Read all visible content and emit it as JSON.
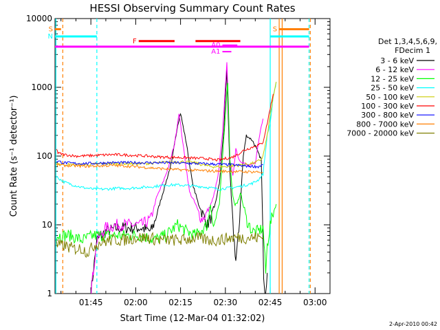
{
  "chart_data": {
    "type": "line",
    "title": "HESSI Observing Summary Count Rates",
    "xlabel": "Start Time (12-Mar-04 01:32:02)",
    "ylabel": "Count Rate (s⁻¹ detector⁻¹)",
    "yscale": "log",
    "ylim": [
      1,
      10000
    ],
    "xlim_minutes": [
      93,
      185
    ],
    "x_ticks": [
      "01:45",
      "02:00",
      "02:15",
      "02:30",
      "02:45",
      "03:00"
    ],
    "y_ticks": [
      "1",
      "10",
      "100",
      "1000",
      "10000"
    ],
    "legend": {
      "header": [
        "Det 1,3,4,5,6,9,",
        "FDecim 1"
      ],
      "placement": "right"
    },
    "series": [
      {
        "name": "3 - 6 keV",
        "color": "#000000",
        "points": [
          [
            105,
            1
          ],
          [
            107,
            6
          ],
          [
            110,
            8
          ],
          [
            114,
            9
          ],
          [
            118,
            9
          ],
          [
            122,
            9
          ],
          [
            125,
            8
          ],
          [
            126,
            10
          ],
          [
            128,
            20
          ],
          [
            130,
            40
          ],
          [
            132,
            80
          ],
          [
            134,
            280
          ],
          [
            135,
            420
          ],
          [
            137,
            150
          ],
          [
            139,
            40
          ],
          [
            141,
            20
          ],
          [
            144,
            10
          ],
          [
            146,
            15
          ],
          [
            148,
            40
          ],
          [
            149.5,
            250
          ],
          [
            150.5,
            1800
          ],
          [
            151.5,
            60
          ],
          [
            152.5,
            10
          ],
          [
            153.5,
            3
          ],
          [
            154.5,
            8
          ],
          [
            155,
            20
          ],
          [
            156,
            100
          ],
          [
            157,
            200
          ],
          [
            159,
            170
          ],
          [
            160,
            140
          ],
          [
            161,
            110
          ],
          [
            162,
            90
          ],
          [
            162.8,
            2
          ],
          [
            163.3,
            1
          ],
          [
            164,
            2
          ]
        ]
      },
      {
        "name": "6 - 12 keV",
        "color": "#ff00ff",
        "points": [
          [
            105,
            1
          ],
          [
            107,
            6
          ],
          [
            110,
            9
          ],
          [
            114,
            10
          ],
          [
            118,
            10
          ],
          [
            122,
            10
          ],
          [
            125,
            12
          ],
          [
            127,
            25
          ],
          [
            129,
            40
          ],
          [
            131,
            70
          ],
          [
            133,
            150
          ],
          [
            134.5,
            430
          ],
          [
            136,
            130
          ],
          [
            138,
            30
          ],
          [
            140,
            20
          ],
          [
            142,
            12
          ],
          [
            144,
            15
          ],
          [
            146,
            25
          ],
          [
            147.5,
            50
          ],
          [
            149,
            200
          ],
          [
            150.5,
            2400
          ],
          [
            151.5,
            90
          ],
          [
            152.5,
            50
          ],
          [
            153.5,
            130
          ],
          [
            154.5,
            90
          ],
          [
            156,
            80
          ],
          [
            158,
            70
          ],
          [
            160,
            80
          ],
          [
            161,
            150
          ],
          [
            162,
            280
          ],
          [
            162.6,
            350
          ]
        ]
      },
      {
        "name": "12 - 25 keV",
        "color": "#00ff00",
        "points": [
          [
            93.5,
            7
          ],
          [
            98,
            7
          ],
          [
            102,
            6
          ],
          [
            106,
            7
          ],
          [
            110,
            7
          ],
          [
            114,
            7
          ],
          [
            118,
            7
          ],
          [
            122,
            7
          ],
          [
            126,
            6
          ],
          [
            130,
            7
          ],
          [
            134,
            10
          ],
          [
            137,
            8
          ],
          [
            140,
            7
          ],
          [
            144,
            10
          ],
          [
            145,
            20
          ],
          [
            146,
            9
          ],
          [
            148,
            20
          ],
          [
            150,
            400
          ],
          [
            150.8,
            1200
          ],
          [
            151.5,
            100
          ],
          [
            152.3,
            30
          ],
          [
            153,
            20
          ],
          [
            154,
            20
          ],
          [
            155,
            30
          ],
          [
            157,
            12
          ],
          [
            159,
            8
          ],
          [
            161,
            8
          ],
          [
            162.6,
            9
          ],
          [
            163,
            5
          ],
          [
            163.5,
            2
          ],
          [
            164,
            5
          ],
          [
            165,
            10
          ],
          [
            166,
            15
          ],
          [
            167,
            20
          ]
        ]
      },
      {
        "name": "25 - 50 keV",
        "color": "#00ffff",
        "points": [
          [
            93.5,
            50
          ],
          [
            96,
            42
          ],
          [
            99,
            38
          ],
          [
            102,
            35
          ],
          [
            106,
            33
          ],
          [
            110,
            33
          ],
          [
            114,
            34
          ],
          [
            118,
            34
          ],
          [
            122,
            35
          ],
          [
            126,
            36
          ],
          [
            130,
            38
          ],
          [
            134,
            38
          ],
          [
            138,
            37
          ],
          [
            142,
            36
          ],
          [
            144,
            35
          ],
          [
            146,
            34
          ],
          [
            148,
            33
          ],
          [
            150,
            34
          ],
          [
            153,
            35
          ],
          [
            156,
            37
          ],
          [
            159,
            40
          ],
          [
            161,
            45
          ],
          [
            162.6,
            55
          ],
          [
            164,
            200
          ],
          [
            165,
            300
          ],
          [
            166,
            700
          ],
          [
            167,
            1200
          ]
        ]
      },
      {
        "name": "50 - 100 keV",
        "color": "#cccc00",
        "points": [
          [
            93.5,
            78
          ],
          [
            96,
            75
          ],
          [
            100,
            75
          ],
          [
            104,
            75
          ],
          [
            108,
            77
          ],
          [
            112,
            78
          ],
          [
            116,
            78
          ],
          [
            120,
            77
          ],
          [
            124,
            78
          ],
          [
            128,
            80
          ],
          [
            132,
            82
          ],
          [
            136,
            83
          ],
          [
            140,
            80
          ],
          [
            142,
            75
          ],
          [
            144,
            72
          ],
          [
            146,
            70
          ],
          [
            148,
            70
          ],
          [
            150,
            70
          ],
          [
            152,
            72
          ],
          [
            154,
            73
          ],
          [
            156,
            75
          ],
          [
            158,
            77
          ],
          [
            160,
            80
          ],
          [
            162,
            90
          ],
          [
            162.6,
            100
          ],
          [
            164,
            200
          ],
          [
            165,
            400
          ],
          [
            166,
            700
          ],
          [
            167,
            1200
          ]
        ]
      },
      {
        "name": "100 - 300 keV",
        "color": "#ff0000",
        "points": [
          [
            93.5,
            130
          ],
          [
            94,
            110
          ],
          [
            96,
            105
          ],
          [
            100,
            100
          ],
          [
            104,
            101
          ],
          [
            108,
            103
          ],
          [
            112,
            105
          ],
          [
            116,
            104
          ],
          [
            120,
            102
          ],
          [
            124,
            100
          ],
          [
            128,
            97
          ],
          [
            132,
            96
          ],
          [
            136,
            95
          ],
          [
            140,
            93
          ],
          [
            144,
            92
          ],
          [
            146,
            88
          ],
          [
            148,
            88
          ],
          [
            150,
            92
          ],
          [
            152,
            95
          ],
          [
            154,
            105
          ],
          [
            156,
            120
          ],
          [
            158,
            130
          ],
          [
            160,
            140
          ],
          [
            162,
            150
          ],
          [
            162.6,
            160
          ],
          [
            164,
            300
          ],
          [
            165,
            500
          ],
          [
            166,
            800
          ]
        ]
      },
      {
        "name": "300 - 800 keV",
        "color": "#0000ff",
        "points": [
          [
            93.5,
            85
          ],
          [
            96,
            80
          ],
          [
            100,
            78
          ],
          [
            104,
            78
          ],
          [
            108,
            79
          ],
          [
            112,
            80
          ],
          [
            116,
            80
          ],
          [
            120,
            80
          ],
          [
            124,
            80
          ],
          [
            128,
            80
          ],
          [
            132,
            80
          ],
          [
            136,
            79
          ],
          [
            140,
            78
          ],
          [
            144,
            77
          ],
          [
            148,
            76
          ],
          [
            150,
            75
          ],
          [
            153,
            74
          ],
          [
            156,
            72
          ],
          [
            159,
            71
          ],
          [
            161,
            70
          ],
          [
            162.6,
            75
          ]
        ]
      },
      {
        "name": "800 - 7000 keV",
        "color": "#ff7f00",
        "points": [
          [
            93.5,
            75
          ],
          [
            96,
            73
          ],
          [
            100,
            72
          ],
          [
            104,
            71
          ],
          [
            108,
            72
          ],
          [
            112,
            73
          ],
          [
            116,
            72
          ],
          [
            120,
            70
          ],
          [
            124,
            68
          ],
          [
            128,
            66
          ],
          [
            132,
            64
          ],
          [
            136,
            63
          ],
          [
            140,
            62
          ],
          [
            144,
            61
          ],
          [
            148,
            60
          ],
          [
            152,
            60
          ],
          [
            156,
            59
          ],
          [
            160,
            59
          ],
          [
            162.6,
            58
          ]
        ]
      },
      {
        "name": "7000 - 20000 keV",
        "color": "#7f7f00",
        "points": [
          [
            93.5,
            5
          ],
          [
            96,
            5
          ],
          [
            99,
            4.5
          ],
          [
            102,
            4.5
          ],
          [
            104,
            4
          ],
          [
            106,
            5
          ],
          [
            108,
            5.5
          ],
          [
            112,
            6
          ],
          [
            116,
            6
          ],
          [
            120,
            6.5
          ],
          [
            124,
            6.5
          ],
          [
            128,
            6
          ],
          [
            132,
            6
          ],
          [
            136,
            6
          ],
          [
            140,
            6.5
          ],
          [
            144,
            6
          ],
          [
            148,
            6
          ],
          [
            152,
            6.5
          ],
          [
            156,
            6.5
          ],
          [
            160,
            6.5
          ],
          [
            162.6,
            6.5
          ]
        ]
      }
    ],
    "annotations": [
      {
        "label": "S",
        "color": "#ff7f00",
        "x_start": 93,
        "x_end": 95,
        "y": 7000
      },
      {
        "label": "S",
        "color": "#ff7f00",
        "x_start": 168,
        "x_end": 178,
        "y": 7000
      },
      {
        "label": "N",
        "color": "#00ffff",
        "x_start": 93,
        "x_end": 107,
        "y": 5500
      },
      {
        "label": "",
        "color": "#00ffff",
        "x_start": 165,
        "x_end": 178,
        "y": 5500
      },
      {
        "label": "F",
        "color": "#ff0000",
        "x_start": 121,
        "x_end": 133,
        "y": 4700
      },
      {
        "label": "",
        "color": "#ff0000",
        "x_start": 140,
        "x_end": 155,
        "y": 4700
      },
      {
        "label": "",
        "color": "#ff00ff",
        "x_start": 93,
        "x_end": 178,
        "y": 3900
      },
      {
        "label": "A0",
        "color": "#ff00ff",
        "x_start": 149,
        "x_end": 154,
        "y": 4100
      },
      {
        "label": "A1",
        "color": "#ff00ff",
        "x_start": 149,
        "x_end": 152,
        "y": 3300
      }
    ],
    "vlines": [
      {
        "color": "#00ffff",
        "x": 93.3,
        "style": "solid"
      },
      {
        "color": "#ff7f00",
        "x": 95.6,
        "style": "dashed"
      },
      {
        "color": "#00ffff",
        "x": 107,
        "style": "dashed"
      },
      {
        "color": "#00ffff",
        "x": 165,
        "style": "solid"
      },
      {
        "color": "#ff7f00",
        "x": 168,
        "style": "solid"
      },
      {
        "color": "#ff7f00",
        "x": 169,
        "style": "solid"
      },
      {
        "color": "#00ffff",
        "x": 178,
        "style": "dashed"
      },
      {
        "color": "#ff7f00",
        "x": 178.4,
        "style": "dashed"
      }
    ]
  },
  "footer": {
    "timestamp": "2-Apr-2010 00:42"
  }
}
